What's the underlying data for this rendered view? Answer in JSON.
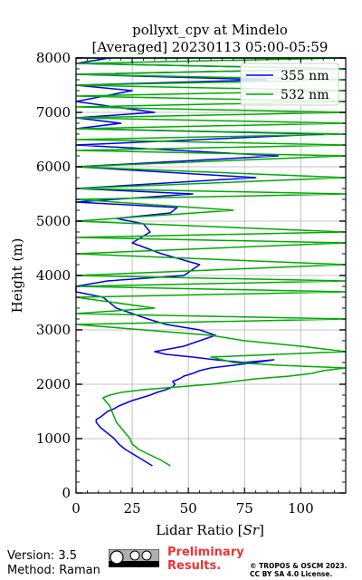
{
  "chart_data": {
    "type": "line",
    "title": "pollyxt_cpv at Mindelo",
    "subtitle": "[Averaged] 20230113 05:00-05:59",
    "xlabel": "Lidar Ratio [$Sr$]",
    "ylabel": "Height (m)",
    "xlim": [
      0,
      120
    ],
    "ylim": [
      0,
      8000
    ],
    "xticks": [
      0,
      25,
      50,
      75,
      100
    ],
    "yticks": [
      0,
      1000,
      2000,
      3000,
      4000,
      5000,
      6000,
      7000,
      8000
    ],
    "grid": true,
    "legend": "top-right",
    "series": [
      {
        "name": "355 nm",
        "color": "#0000ee",
        "x": [
          34,
          30,
          26,
          22,
          19,
          17,
          14,
          11,
          9,
          9,
          11,
          14,
          17,
          19,
          22,
          25,
          29,
          33,
          36,
          40,
          43,
          44,
          43,
          46,
          48,
          52,
          55,
          60,
          70,
          80,
          88,
          75,
          62,
          52,
          40,
          35,
          48,
          55,
          62,
          55,
          40,
          32,
          25,
          18,
          12,
          0,
          0,
          14,
          48,
          55,
          38,
          25,
          33,
          30,
          18,
          42,
          45,
          0,
          52,
          0,
          80,
          0,
          90,
          0,
          110,
          0,
          20,
          0,
          35,
          0,
          25,
          0,
          85,
          0,
          120,
          0,
          15,
          0,
          60,
          0,
          120,
          0,
          45,
          0,
          110,
          0,
          120,
          0,
          120,
          0,
          95,
          0,
          60,
          0,
          120,
          0,
          120,
          0,
          120,
          0
        ],
        "y": [
          500,
          600,
          700,
          800,
          900,
          1000,
          1100,
          1200,
          1300,
          1350,
          1400,
          1500,
          1550,
          1600,
          1650,
          1700,
          1750,
          1800,
          1850,
          1900,
          1950,
          2000,
          2050,
          2100,
          2150,
          2200,
          2250,
          2300,
          2350,
          2400,
          2450,
          2400,
          2450,
          2500,
          2550,
          2600,
          2700,
          2800,
          2900,
          3000,
          3100,
          3200,
          3300,
          3400,
          3600,
          3700,
          3800,
          3900,
          4000,
          4200,
          4400,
          4600,
          4800,
          4950,
          5050,
          5150,
          5250,
          5350,
          5500,
          5600,
          5800,
          6000,
          6200,
          6400,
          6600,
          6700,
          6800,
          6900,
          7000,
          7200,
          7400,
          7500,
          7600,
          7700,
          7800,
          7900,
          8000,
          8000,
          8000,
          8000,
          8000,
          8000,
          8000,
          8000,
          8000,
          8000,
          8000,
          8000,
          8000,
          8000,
          8000,
          8000,
          8000,
          8000,
          8000,
          8000,
          8000,
          8000,
          8000,
          8000
        ]
      },
      {
        "name": "532 nm",
        "color": "#00aa00",
        "x": [
          42,
          38,
          33,
          28,
          25,
          24,
          22,
          20,
          18,
          17,
          16,
          15,
          13,
          12,
          15,
          20,
          30,
          45,
          60,
          70,
          80,
          95,
          105,
          110,
          120,
          90,
          70,
          60,
          120,
          100,
          75,
          60,
          30,
          0,
          120,
          0,
          35,
          0,
          120,
          0,
          120,
          0,
          120,
          0,
          120,
          0,
          120,
          0,
          70,
          0,
          120,
          0,
          120,
          0,
          120,
          0,
          120,
          0,
          120,
          0,
          120,
          0,
          120,
          0,
          120,
          0,
          120,
          0,
          120,
          0,
          120,
          0,
          120,
          0,
          120,
          0,
          120,
          0,
          120,
          0,
          120,
          0
        ],
        "y": [
          500,
          600,
          700,
          800,
          900,
          1000,
          1100,
          1200,
          1300,
          1400,
          1500,
          1600,
          1700,
          1750,
          1800,
          1850,
          1900,
          1950,
          2000,
          2050,
          2100,
          2150,
          2200,
          2250,
          2300,
          2350,
          2400,
          2500,
          2600,
          2700,
          2800,
          2900,
          3000,
          3100,
          3200,
          3300,
          3400,
          3600,
          3700,
          3800,
          3900,
          4000,
          4200,
          4400,
          4600,
          4700,
          4800,
          5000,
          5200,
          5400,
          5500,
          5600,
          5800,
          6000,
          6200,
          6300,
          6400,
          6500,
          6600,
          6700,
          6800,
          6900,
          7000,
          7100,
          7200,
          7300,
          7400,
          7500,
          7600,
          7700,
          7800,
          7900,
          8000,
          8000,
          8000,
          8000,
          8000,
          8000,
          8000,
          8000,
          8000,
          8000
        ]
      }
    ]
  },
  "footer": {
    "version": "Version: 3.5",
    "method": "Method: Raman",
    "preliminary_line1": "Preliminary",
    "preliminary_line2": "Results.",
    "copyright_line1": "© TROPOS & OSCM 2023.",
    "copyright_line2": "CC BY SA 4.0 License."
  }
}
